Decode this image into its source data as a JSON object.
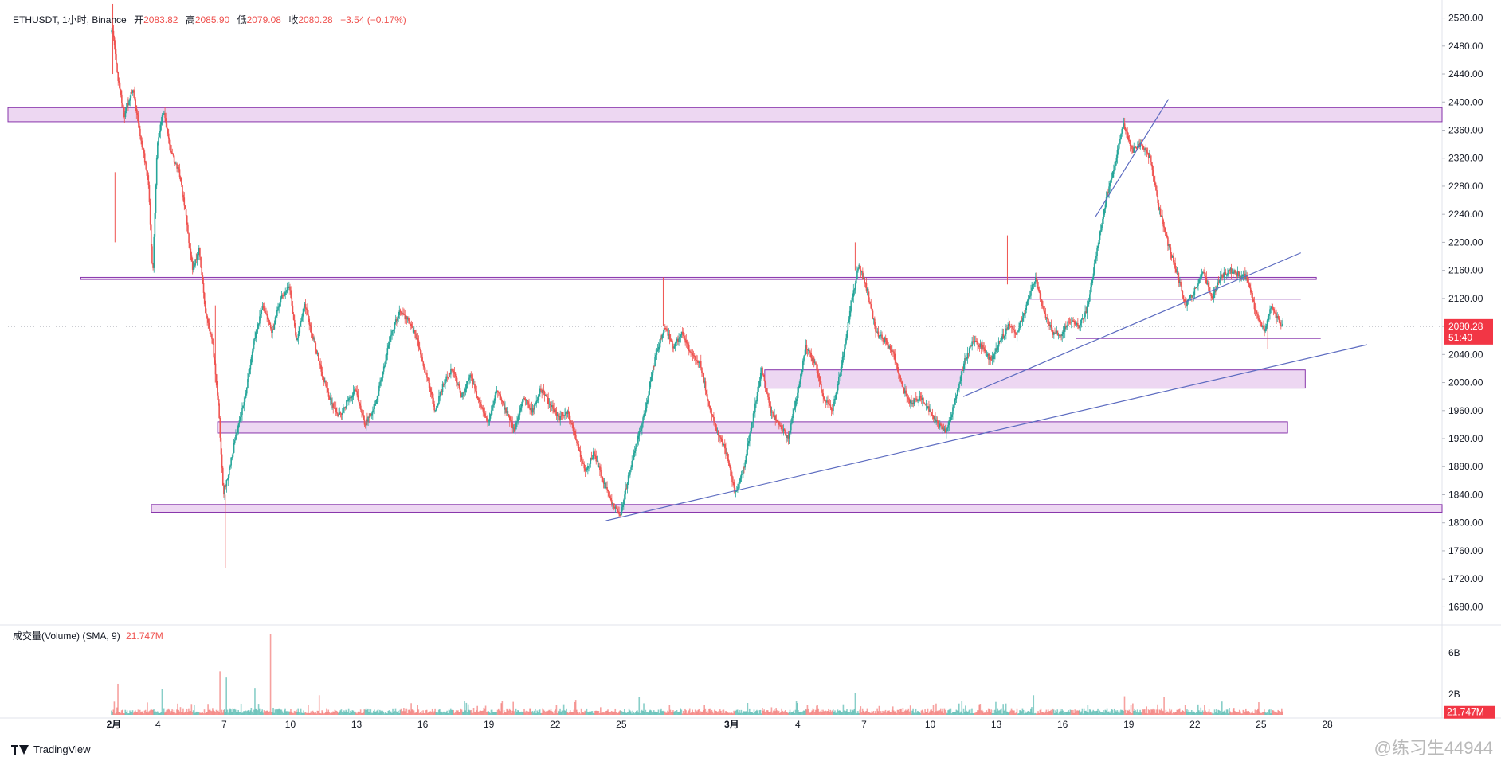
{
  "header": {
    "symbol": "ETHUSDT, 1小时, Binance",
    "open_label": "开",
    "open": "2083.82",
    "high_label": "高",
    "high": "2085.90",
    "low_label": "低",
    "low": "2079.08",
    "close_label": "收",
    "close": "2080.28",
    "change": "−3.54 (−0.17%)"
  },
  "volume_header": {
    "label": "成交量(Volume) (SMA, 9)",
    "value": "21.747M"
  },
  "footer": {
    "brand": "TradingView",
    "watermark": "@练习生44944"
  },
  "colors": {
    "up": "#26a69a",
    "down": "#ef5350",
    "zone_fill": "#ecd3f1",
    "zone_border": "#7b1fa2",
    "trendline": "#5c6bc0",
    "price_tag": "#f23645"
  },
  "chart_data": [
    {
      "type": "candlestick",
      "title": "ETHUSDT, 1小时, Binance",
      "y_ticks": [
        "2520.00",
        "2480.00",
        "2440.00",
        "2400.00",
        "2360.00",
        "2320.00",
        "2280.00",
        "2240.00",
        "2200.00",
        "2160.00",
        "2120.00",
        "2080.00",
        "2040.00",
        "2000.00",
        "1960.00",
        "1920.00",
        "1880.00",
        "1840.00",
        "1800.00",
        "1760.00",
        "1720.00",
        "1680.00"
      ],
      "ylim": [
        1660,
        2532
      ],
      "x_ticks": [
        "2月",
        "4",
        "7",
        "10",
        "13",
        "16",
        "19",
        "22",
        "25",
        "3月",
        "4",
        "7",
        "10",
        "13",
        "16",
        "19",
        "22",
        "25",
        "28"
      ],
      "x_tick_days": [
        0,
        2,
        5,
        8,
        11,
        14,
        17,
        20,
        23,
        28,
        31,
        34,
        37,
        40,
        43,
        46,
        49,
        52,
        55
      ],
      "xlim": [
        -4.8,
        60.2
      ],
      "last_price": 2080.28,
      "last_price_label": "2080.28",
      "countdown": "51:40",
      "price_path": [
        [
          0,
          2500
        ],
        [
          0.2,
          2440
        ],
        [
          0.5,
          2380
        ],
        [
          0.9,
          2420
        ],
        [
          1.3,
          2340
        ],
        [
          1.6,
          2290
        ],
        [
          1.8,
          2150
        ],
        [
          2.0,
          2340
        ],
        [
          2.3,
          2390
        ],
        [
          2.6,
          2330
        ],
        [
          3.0,
          2300
        ],
        [
          3.3,
          2240
        ],
        [
          3.6,
          2160
        ],
        [
          3.9,
          2190
        ],
        [
          4.2,
          2100
        ],
        [
          4.5,
          2060
        ],
        [
          4.8,
          1960
        ],
        [
          5.0,
          1840
        ],
        [
          5.3,
          1880
        ],
        [
          5.6,
          1930
        ],
        [
          6.0,
          1980
        ],
        [
          6.4,
          2060
        ],
        [
          6.8,
          2110
        ],
        [
          7.2,
          2070
        ],
        [
          7.6,
          2120
        ],
        [
          8.0,
          2140
        ],
        [
          8.3,
          2060
        ],
        [
          8.7,
          2110
        ],
        [
          9.1,
          2060
        ],
        [
          9.5,
          2010
        ],
        [
          9.8,
          1980
        ],
        [
          10.2,
          1950
        ],
        [
          10.6,
          1970
        ],
        [
          11.0,
          1990
        ],
        [
          11.4,
          1940
        ],
        [
          11.8,
          1960
        ],
        [
          12.2,
          2010
        ],
        [
          12.6,
          2070
        ],
        [
          13.0,
          2100
        ],
        [
          13.4,
          2090
        ],
        [
          13.8,
          2060
        ],
        [
          14.2,
          2010
        ],
        [
          14.6,
          1960
        ],
        [
          15.0,
          2000
        ],
        [
          15.4,
          2020
        ],
        [
          15.8,
          1980
        ],
        [
          16.2,
          2010
        ],
        [
          16.6,
          1970
        ],
        [
          17.0,
          1940
        ],
        [
          17.4,
          1990
        ],
        [
          17.8,
          1960
        ],
        [
          18.2,
          1930
        ],
        [
          18.6,
          1980
        ],
        [
          19.0,
          1960
        ],
        [
          19.4,
          1990
        ],
        [
          19.8,
          1970
        ],
        [
          20.2,
          1950
        ],
        [
          20.6,
          1960
        ],
        [
          21.0,
          1920
        ],
        [
          21.4,
          1870
        ],
        [
          21.8,
          1900
        ],
        [
          22.2,
          1860
        ],
        [
          22.6,
          1830
        ],
        [
          23.0,
          1810
        ],
        [
          23.4,
          1870
        ],
        [
          23.8,
          1920
        ],
        [
          24.2,
          1970
        ],
        [
          24.6,
          2040
        ],
        [
          25.0,
          2080
        ],
        [
          25.4,
          2050
        ],
        [
          25.8,
          2070
        ],
        [
          26.2,
          2040
        ],
        [
          26.6,
          2030
        ],
        [
          27.0,
          1970
        ],
        [
          27.4,
          1930
        ],
        [
          27.8,
          1900
        ],
        [
          28.2,
          1840
        ],
        [
          28.6,
          1880
        ],
        [
          29.0,
          1950
        ],
        [
          29.4,
          2020
        ],
        [
          29.8,
          1960
        ],
        [
          30.2,
          1940
        ],
        [
          30.6,
          1920
        ],
        [
          31.0,
          1980
        ],
        [
          31.4,
          2050
        ],
        [
          31.8,
          2030
        ],
        [
          32.2,
          1980
        ],
        [
          32.6,
          1960
        ],
        [
          33.0,
          2020
        ],
        [
          33.4,
          2100
        ],
        [
          33.8,
          2170
        ],
        [
          34.2,
          2130
        ],
        [
          34.6,
          2070
        ],
        [
          35.0,
          2060
        ],
        [
          35.4,
          2040
        ],
        [
          35.8,
          1990
        ],
        [
          36.2,
          1970
        ],
        [
          36.6,
          1980
        ],
        [
          37.0,
          1960
        ],
        [
          37.4,
          1940
        ],
        [
          37.8,
          1930
        ],
        [
          38.2,
          1980
        ],
        [
          38.6,
          2030
        ],
        [
          39.0,
          2060
        ],
        [
          39.4,
          2050
        ],
        [
          39.8,
          2030
        ],
        [
          40.2,
          2060
        ],
        [
          40.6,
          2080
        ],
        [
          41.0,
          2070
        ],
        [
          41.4,
          2110
        ],
        [
          41.8,
          2150
        ],
        [
          42.2,
          2100
        ],
        [
          42.6,
          2070
        ],
        [
          43.0,
          2070
        ],
        [
          43.4,
          2090
        ],
        [
          43.8,
          2080
        ],
        [
          44.2,
          2110
        ],
        [
          44.6,
          2190
        ],
        [
          45.0,
          2260
        ],
        [
          45.4,
          2310
        ],
        [
          45.8,
          2370
        ],
        [
          46.2,
          2330
        ],
        [
          46.6,
          2340
        ],
        [
          47.0,
          2320
        ],
        [
          47.4,
          2250
        ],
        [
          47.8,
          2200
        ],
        [
          48.2,
          2160
        ],
        [
          48.6,
          2110
        ],
        [
          49.0,
          2130
        ],
        [
          49.4,
          2160
        ],
        [
          49.8,
          2120
        ],
        [
          50.2,
          2150
        ],
        [
          50.6,
          2160
        ],
        [
          51.0,
          2155
        ],
        [
          51.4,
          2150
        ],
        [
          51.8,
          2100
        ],
        [
          52.2,
          2070
        ],
        [
          52.5,
          2110
        ],
        [
          52.8,
          2090
        ],
        [
          53.0,
          2080
        ]
      ],
      "zones": [
        {
          "from_day": -4.8,
          "to_day": 60.2,
          "low": 2372,
          "high": 2392
        },
        {
          "from_day": -1.5,
          "to_day": 54.5,
          "low": 2147,
          "high": 2150
        },
        {
          "from_day": 29.5,
          "to_day": 54.0,
          "low": 1992,
          "high": 2018
        },
        {
          "from_day": 4.7,
          "to_day": 53.2,
          "low": 1928,
          "high": 1944
        },
        {
          "from_day": 1.7,
          "to_day": 60.2,
          "low": 1815,
          "high": 1826
        }
      ],
      "levels": [
        {
          "from_day": 41.5,
          "to_day": 53.8,
          "price": 2119
        },
        {
          "from_day": 43.6,
          "to_day": 54.7,
          "price": 2063
        }
      ],
      "trendlines": [
        {
          "from": [
            22.3,
            1803
          ],
          "to": [
            56.8,
            2054
          ]
        },
        {
          "from": [
            38.5,
            1980
          ],
          "to": [
            53.8,
            2185
          ]
        },
        {
          "from": [
            44.5,
            2237
          ],
          "to": [
            47.8,
            2404
          ]
        }
      ]
    },
    {
      "type": "bar",
      "title": "成交量(Volume) (SMA, 9)",
      "y_ticks": [
        "6B",
        "2B"
      ],
      "y_tick_values": [
        6,
        2
      ],
      "ylim": [
        0,
        8.3
      ],
      "units": "B",
      "last_value_label": "21.747M",
      "spikes": [
        {
          "day": 0.2,
          "value": 3.0
        },
        {
          "day": 2.2,
          "value": 2.5
        },
        {
          "day": 4.8,
          "value": 4.2
        },
        {
          "day": 5.1,
          "value": 3.6
        },
        {
          "day": 7.1,
          "value": 7.8
        },
        {
          "day": 6.4,
          "value": 2.6
        },
        {
          "day": 9.3,
          "value": 1.9
        },
        {
          "day": 23.8,
          "value": 1.7
        },
        {
          "day": 33.6,
          "value": 2.1
        },
        {
          "day": 41.7,
          "value": 1.9
        },
        {
          "day": 45.8,
          "value": 1.8
        },
        {
          "day": 47.6,
          "value": 1.7
        }
      ]
    }
  ]
}
